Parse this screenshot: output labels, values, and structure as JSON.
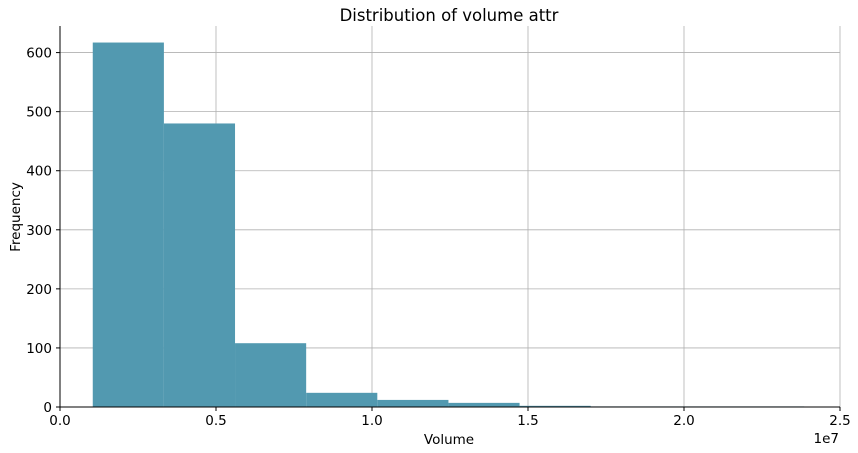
{
  "chart_data": {
    "type": "histogram",
    "title": "Distribution of volume attr",
    "xlabel": "Volume",
    "ylabel": "Frequency",
    "x_scale_label": "1e7",
    "x_unit_scale": 10000000,
    "xlim": [
      0,
      25000000
    ],
    "ylim": [
      0,
      645
    ],
    "x_ticks": [
      0,
      5000000,
      10000000,
      15000000,
      20000000,
      25000000
    ],
    "x_tick_labels": [
      "0.0",
      "0.5",
      "1.0",
      "1.5",
      "2.0",
      "2.5"
    ],
    "y_ticks": [
      0,
      100,
      200,
      300,
      400,
      500,
      600
    ],
    "y_tick_labels": [
      "0",
      "100",
      "200",
      "300",
      "400",
      "500",
      "600"
    ],
    "bin_edges": [
      1050000,
      3330000,
      5610000,
      7890000,
      10170000,
      12450000,
      14730000,
      17010000,
      19290000,
      21570000,
      23850000
    ],
    "counts": [
      617,
      480,
      108,
      24,
      12,
      7,
      2,
      1,
      1,
      1
    ],
    "bar_color": "#5299b0",
    "grid": true,
    "spines": [
      "left",
      "bottom"
    ]
  }
}
